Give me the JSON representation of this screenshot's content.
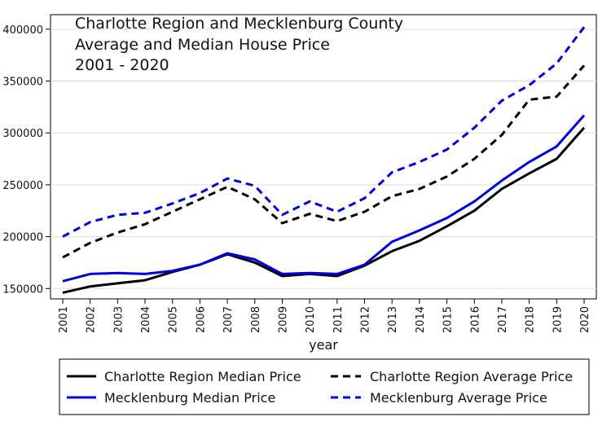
{
  "chart_data": {
    "type": "line",
    "title_lines": [
      "Charlotte Region and Mecklenburg County",
      "Average and Median House Price",
      "2001 - 2020"
    ],
    "xlabel": "year",
    "ylabel": "",
    "x": [
      2001,
      2002,
      2003,
      2004,
      2005,
      2006,
      2007,
      2008,
      2009,
      2010,
      2011,
      2012,
      2013,
      2014,
      2015,
      2016,
      2017,
      2018,
      2019,
      2020
    ],
    "x_tick_labels": [
      "2001",
      "2002",
      "2003",
      "2004",
      "2005",
      "2006",
      "2007",
      "2008",
      "2009",
      "2010",
      "2011",
      "2012",
      "2013",
      "2014",
      "2015",
      "2016",
      "2017",
      "2018",
      "2019",
      "2020"
    ],
    "y_ticks": [
      150000,
      200000,
      250000,
      300000,
      350000,
      400000
    ],
    "y_tick_labels": [
      "150000",
      "200000",
      "250000",
      "300000",
      "350000",
      "400000"
    ],
    "ylim": [
      140000,
      414000
    ],
    "grid": "horizontal",
    "legend_position": "bottom",
    "series": [
      {
        "name": "Charlotte Region Median Price",
        "color": "#000000",
        "dash": "solid",
        "values": [
          146000,
          152000,
          155000,
          158000,
          166000,
          173000,
          183000,
          175000,
          162000,
          164000,
          162000,
          172000,
          186000,
          196000,
          210000,
          225000,
          246000,
          261000,
          275000,
          305000
        ]
      },
      {
        "name": "Charlotte Region Average Price",
        "color": "#000000",
        "dash": "dashed",
        "values": [
          180000,
          194000,
          204000,
          212000,
          224000,
          236000,
          248000,
          236000,
          213000,
          222000,
          215000,
          224000,
          239000,
          246000,
          258000,
          275000,
          298000,
          332000,
          335000,
          365000
        ]
      },
      {
        "name": "Mecklenburg Median Price",
        "color": "#0000dd",
        "dash": "solid",
        "values": [
          157000,
          164000,
          165000,
          164000,
          167000,
          173000,
          184000,
          178000,
          164000,
          165000,
          164000,
          173000,
          195000,
          206000,
          218000,
          234000,
          254000,
          272000,
          287000,
          317000
        ]
      },
      {
        "name": "Mecklenburg Average Price",
        "color": "#0000dd",
        "dash": "dashed",
        "values": [
          200000,
          214000,
          221000,
          223000,
          232000,
          242000,
          256000,
          249000,
          221000,
          234000,
          224000,
          237000,
          262000,
          272000,
          284000,
          305000,
          331000,
          346000,
          367000,
          402000
        ]
      }
    ]
  }
}
